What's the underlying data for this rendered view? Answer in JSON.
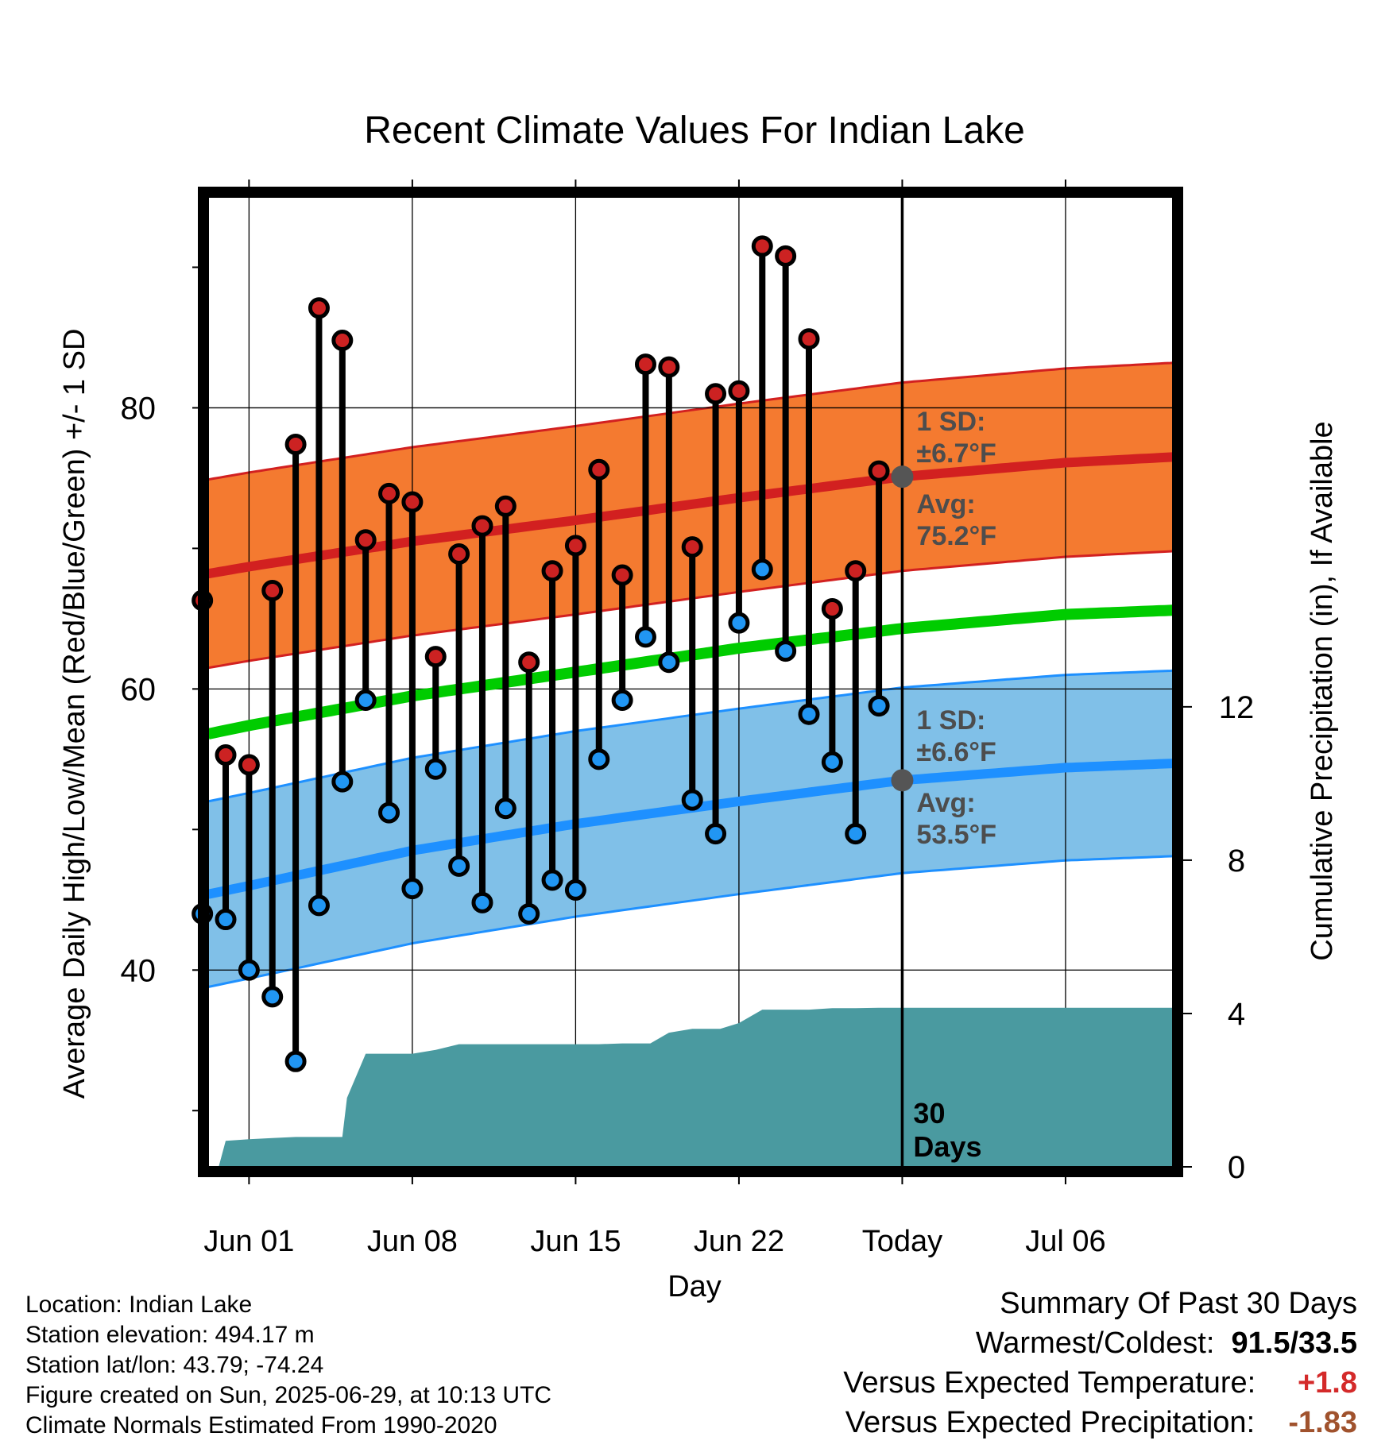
{
  "chart_data": {
    "type": "line",
    "title": "Recent Climate Values For Indian Lake",
    "xlabel": "Day",
    "ylabel_left": "Average Daily High/Low/Mean (Red/Blue/Green) +/- 1 SD",
    "ylabel_right": "Cumulative Precipitation (in), If Available",
    "x_tick_labels": [
      "Jun 01",
      "Jun 08",
      "Jun 15",
      "Jun 22",
      "Today",
      "Jul 06"
    ],
    "y_left_ticks": [
      "40",
      "60",
      "80"
    ],
    "y_left_range": [
      26,
      95
    ],
    "y_right_ticks": [
      "0",
      "4",
      "8",
      "12"
    ],
    "y_right_range": [
      0,
      25.3
    ],
    "grid": true,
    "x_days": {
      "start": -1.75,
      "end": 39.6,
      "today": 28
    },
    "day_index_note_dates": [
      "May 30",
      "May 31",
      "Jun 01",
      "Jun 02",
      "Jun 03",
      "Jun 04",
      "Jun 05",
      "Jun 06",
      "Jun 07",
      "Jun 08",
      "Jun 09",
      "Jun 10",
      "Jun 11",
      "Jun 12",
      "Jun 13",
      "Jun 14",
      "Jun 15",
      "Jun 16",
      "Jun 17",
      "Jun 18",
      "Jun 19",
      "Jun 20",
      "Jun 21",
      "Jun 22",
      "Jun 23",
      "Jun 24",
      "Jun 25",
      "Jun 26",
      "Jun 27",
      "Jun 28"
    ],
    "daily_high": [
      66.3,
      55.3,
      54.6,
      67.0,
      77.4,
      87.1,
      84.8,
      70.6,
      73.9,
      73.3,
      62.3,
      69.6,
      71.6,
      73.0,
      61.9,
      68.4,
      70.2,
      75.6,
      68.1,
      83.1,
      82.9,
      70.1,
      81.0,
      81.2,
      91.5,
      90.8,
      84.9,
      65.7,
      68.4,
      75.5
    ],
    "daily_low": [
      44.0,
      43.6,
      40.0,
      38.1,
      33.5,
      44.6,
      53.4,
      59.2,
      51.2,
      45.8,
      54.3,
      47.4,
      44.8,
      51.5,
      44.0,
      46.4,
      45.7,
      55.0,
      59.2,
      63.7,
      61.9,
      52.1,
      49.7,
      64.7,
      68.5,
      62.7,
      58.2,
      54.8,
      49.7,
      58.8
    ],
    "normal_high": {
      "days": [
        -1.75,
        0,
        7,
        14,
        21,
        28,
        35,
        39.6
      ],
      "values": [
        68.2,
        68.7,
        70.5,
        72.0,
        73.6,
        75.1,
        76.1,
        76.5
      ]
    },
    "normal_low": {
      "days": [
        -1.75,
        0,
        7,
        14,
        21,
        28,
        35,
        39.6
      ],
      "values": [
        45.4,
        46.0,
        48.5,
        50.4,
        52.0,
        53.5,
        54.4,
        54.7
      ]
    },
    "normal_mean": {
      "days": [
        -1.75,
        0,
        7,
        14,
        21,
        28,
        35,
        39.6
      ],
      "values": [
        56.8,
        57.4,
        59.5,
        61.2,
        62.9,
        64.3,
        65.3,
        65.6
      ]
    },
    "sd_high": 6.7,
    "sd_low": 6.6,
    "cumulative_precip": {
      "days": [
        -1.75,
        -1.3,
        -1.0,
        0,
        1.0,
        2.0,
        3.0,
        4.0,
        4.2,
        5.0,
        6.0,
        7.0,
        8.0,
        9.0,
        10.0,
        11.0,
        12.0,
        13.0,
        14.0,
        15.0,
        16.0,
        17.0,
        17.2,
        18.0,
        19.0,
        20.0,
        20.2,
        21.0,
        22.0,
        23.0,
        24.0,
        25.0,
        26.0,
        27.0,
        28.0,
        39.6
      ],
      "values": [
        0,
        0,
        0.68,
        0.72,
        0.75,
        0.78,
        0.78,
        0.78,
        1.8,
        2.95,
        2.95,
        2.95,
        3.05,
        3.2,
        3.2,
        3.2,
        3.2,
        3.2,
        3.2,
        3.2,
        3.22,
        3.22,
        3.22,
        3.5,
        3.6,
        3.6,
        3.6,
        3.75,
        4.1,
        4.1,
        4.1,
        4.14,
        4.14,
        4.15,
        4.15,
        4.15
      ]
    },
    "annotations": {
      "high_sd_line1": "1 SD:",
      "high_sd_line2": "±6.7°F",
      "high_avg_line1": "Avg:",
      "high_avg_line2": "75.2°F",
      "low_sd_line1": "1 SD:",
      "low_sd_line2": "±6.6°F",
      "low_avg_line1": "Avg:",
      "low_avg_line2": "53.5°F",
      "days_line1": "30",
      "days_line2": "Days"
    },
    "colors": {
      "high_band": "#f47a30",
      "high_line": "#d22020",
      "low_band": "#80c0e8",
      "low_line": "#1e90ff",
      "mean_line": "#00cc00",
      "precip": "#4a9aa0",
      "high_dot": "#cc2222",
      "low_dot": "#2196f3",
      "annotation_text": "#4d4d4d"
    }
  },
  "meta": {
    "location": "Location: Indian Lake",
    "elevation": "Station elevation: 494.17 m",
    "latlon": "Station lat/lon: 43.79; -74.24",
    "created": "Figure created on Sun, 2025-06-29, at 10:13 UTC",
    "normals": "Climate Normals Estimated From 1990-2020"
  },
  "summary": {
    "heading": "Summary Of Past 30 Days",
    "warm_cold_label": "Warmest/Coldest:",
    "warm_cold_value": "91.5/33.5",
    "temp_label": "Versus Expected Temperature:",
    "temp_value": "+1.8",
    "temp_color": "#d42a2a",
    "precip_label": "Versus Expected Precipitation:",
    "precip_value": "-1.83",
    "precip_color": "#a0522d"
  }
}
